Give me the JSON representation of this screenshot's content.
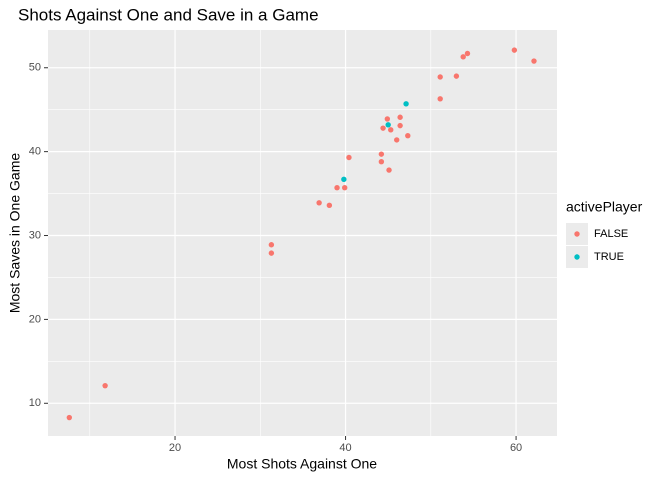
{
  "chart_data": {
    "type": "scatter",
    "title": "Shots Against One and Save in a Game",
    "x_label": "Most Shots Against One",
    "y_label": "Most Saves in One Game",
    "legend_title": "activePlayer",
    "legend_position": "right",
    "grid": true,
    "xlim": [
      5.1,
      64.8
    ],
    "ylim": [
      6.1,
      54.5
    ],
    "xticks": [
      20,
      40,
      60
    ],
    "yticks": [
      10,
      20,
      30,
      40,
      50
    ],
    "series": [
      {
        "name": "FALSE",
        "color": "#F8766D",
        "x": [
          7.6,
          11.8,
          31.3,
          31.3,
          36.9,
          38.1,
          39.0,
          39.9,
          40.4,
          44.2,
          44.2,
          45.1,
          44.4,
          44.9,
          45.3,
          46.0,
          46.4,
          46.4,
          47.3,
          51.1,
          51.1,
          53.0,
          53.8,
          54.3,
          59.8,
          62.1
        ],
        "values": [
          8.3,
          12.1,
          28.9,
          27.9,
          33.9,
          33.6,
          35.7,
          35.7,
          39.3,
          39.7,
          38.8,
          37.8,
          42.8,
          43.9,
          42.6,
          41.4,
          44.1,
          43.1,
          41.9,
          48.9,
          46.3,
          49.0,
          51.3,
          51.7,
          52.1,
          50.8
        ]
      },
      {
        "name": "TRUE",
        "color": "#00BFC4",
        "x": [
          39.8,
          45.0,
          47.1
        ],
        "values": [
          36.7,
          43.2,
          45.7
        ]
      }
    ]
  }
}
